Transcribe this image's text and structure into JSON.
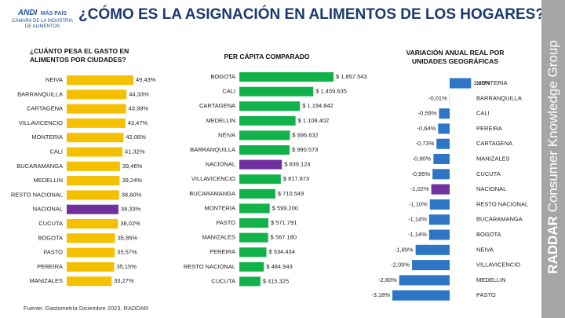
{
  "header": {
    "title": "¿CÓMO ES LA ASIGNACIÓN EN ALIMENTOS DE LOS HOGARES?",
    "logo": {
      "brand": "ANDI",
      "tagline": "MÁS PAÍS",
      "subtitle": "CÁMARA DE LA INDUSTRIA DE ALIMENTOS"
    }
  },
  "brand": {
    "name": "RADDAR",
    "tagline": "Consumer Knowledge Group"
  },
  "footer": {
    "source": "Fuente: Gastometría Diciembre 2023, RADDAR"
  },
  "chart_data": [
    {
      "type": "bar",
      "title": "¿CUÁNTO PESA EL GASTO EN ALIMENTOS POR CIUDADES?",
      "categories": [
        "NEIVA",
        "BARRANQUILLA",
        "CARTAGENA",
        "VILLAVICENCIO",
        "MONTERIA",
        "CALI",
        "BUCARAMANGA",
        "MEDELLIN",
        "RESTO NACIONAL",
        "NACIONAL",
        "CUCUTA",
        "BOGOTA",
        "PASTO",
        "PEREIRA",
        "MANIZALES"
      ],
      "values": [
        49.43,
        44.33,
        43.99,
        43.47,
        42.06,
        41.32,
        39.46,
        39.24,
        38.8,
        38.33,
        38.02,
        35.85,
        35.57,
        35.15,
        33.27
      ],
      "value_labels": [
        "49,43%",
        "44,33%",
        "43,99%",
        "43,47%",
        "42,06%",
        "41,32%",
        "39,46%",
        "39,24%",
        "38,80%",
        "38,33%",
        "38,02%",
        "35,85%",
        "35,57%",
        "35,15%",
        "33,27%"
      ],
      "colors": [
        "#f5c000",
        "#f5c000",
        "#f5c000",
        "#f5c000",
        "#f5c000",
        "#f5c000",
        "#f5c000",
        "#f5c000",
        "#f5c000",
        "#7030a0",
        "#f5c000",
        "#f5c000",
        "#f5c000",
        "#f5c000",
        "#f5c000"
      ]
    },
    {
      "type": "bar",
      "title": "PER CÁPITA COMPARADO",
      "categories": [
        "BOGOTA",
        "CALI",
        "CARTAGENA",
        "MEDELLIN",
        "NEIVA",
        "BARRANQUILLA",
        "NACIONAL",
        "VILLAVICENCIO",
        "BUCARAMANGA",
        "MONTERIA",
        "PASTO",
        "MANIZALES",
        "PEREIRA",
        "RESTO NACIONAL",
        "CUCUTA"
      ],
      "values": [
        1857543,
        1459635,
        1194842,
        1108402,
        996632,
        990573,
        839124,
        817873,
        710549,
        599200,
        571791,
        567180,
        534434,
        484943,
        415325
      ],
      "value_labels": [
        "$ 1.857.543",
        "$ 1.459.635",
        "$ 1.194.842",
        "$ 1.108.402",
        "$ 996.632",
        "$ 990.573",
        "$ 839.124",
        "$ 817.873",
        "$ 710.549",
        "$ 599.200",
        "$ 571.791",
        "$ 567.180",
        "$ 534.434",
        "$ 484.943",
        "$ 415.325"
      ],
      "colors": [
        "#12b24a",
        "#12b24a",
        "#12b24a",
        "#12b24a",
        "#12b24a",
        "#12b24a",
        "#7030a0",
        "#12b24a",
        "#12b24a",
        "#12b24a",
        "#12b24a",
        "#12b24a",
        "#12b24a",
        "#12b24a",
        "#12b24a"
      ]
    },
    {
      "type": "diverging-bar",
      "title": "VARIACIÓN ANUAL REAL POR UNIDADES GEOGRÁFICAS",
      "categories": [
        "MONTERIA",
        "BARRANQUILLA",
        "CALI",
        "PEREIRA",
        "CARTAGENA",
        "MANIZALES",
        "CUCUTA",
        "NACIONAL",
        "RESTO NACIONAL",
        "BUCARAMANGA",
        "BOGOTA",
        "NEIVA",
        "VILLAVICENCIO",
        "MEDELLIN",
        "PASTO"
      ],
      "values": [
        1.19,
        -0.01,
        -0.59,
        -0.64,
        -0.73,
        -0.9,
        -0.95,
        -1.02,
        -1.1,
        -1.14,
        -1.14,
        -1.89,
        -2.09,
        -2.8,
        -3.18
      ],
      "value_labels": [
        "1,19%",
        "-0,01%",
        "-0,59%",
        "-0,64%",
        "-0,73%",
        "-0,90%",
        "-0,95%",
        "-1,02%",
        "-1,10%",
        "-1,14%",
        "-1,14%",
        "-1,89%",
        "-2,09%",
        "-2,80%",
        "-3,18%"
      ],
      "colors": [
        "#2e75c6",
        "#2e75c6",
        "#2e75c6",
        "#2e75c6",
        "#2e75c6",
        "#2e75c6",
        "#2e75c6",
        "#7030a0",
        "#2e75c6",
        "#2e75c6",
        "#2e75c6",
        "#2e75c6",
        "#2e75c6",
        "#2e75c6",
        "#2e75c6"
      ]
    }
  ]
}
